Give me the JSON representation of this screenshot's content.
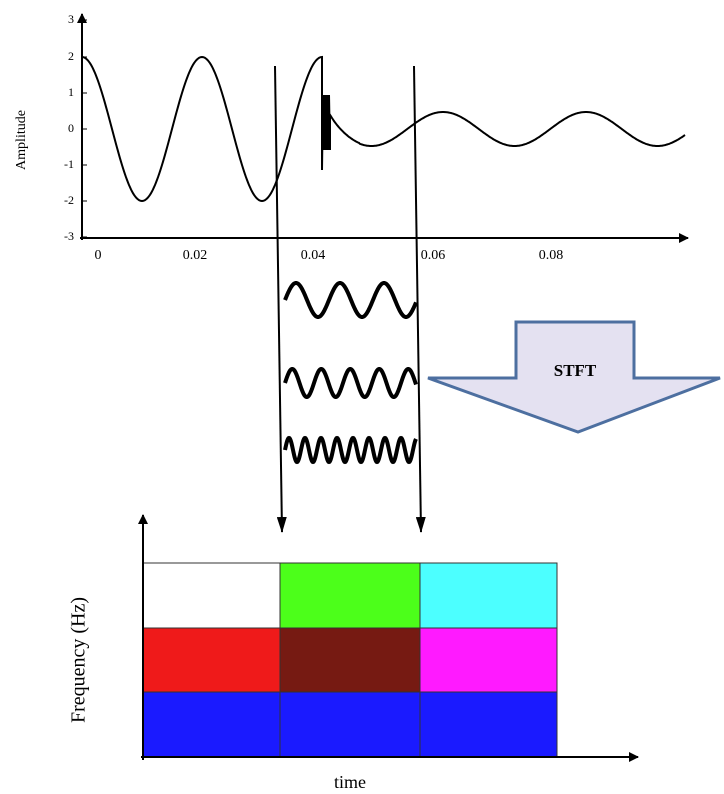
{
  "top_plot": {
    "y_label": "Amplitude",
    "y_ticks": [
      3,
      2,
      1,
      0,
      -1,
      -2,
      -3
    ],
    "x_ticks": [
      0,
      0.02,
      0.04,
      0.06,
      0.08
    ]
  },
  "transform": {
    "label": "STFT"
  },
  "spectrogram": {
    "x_label": "time",
    "y_label": "Frequency (Hz)"
  }
}
